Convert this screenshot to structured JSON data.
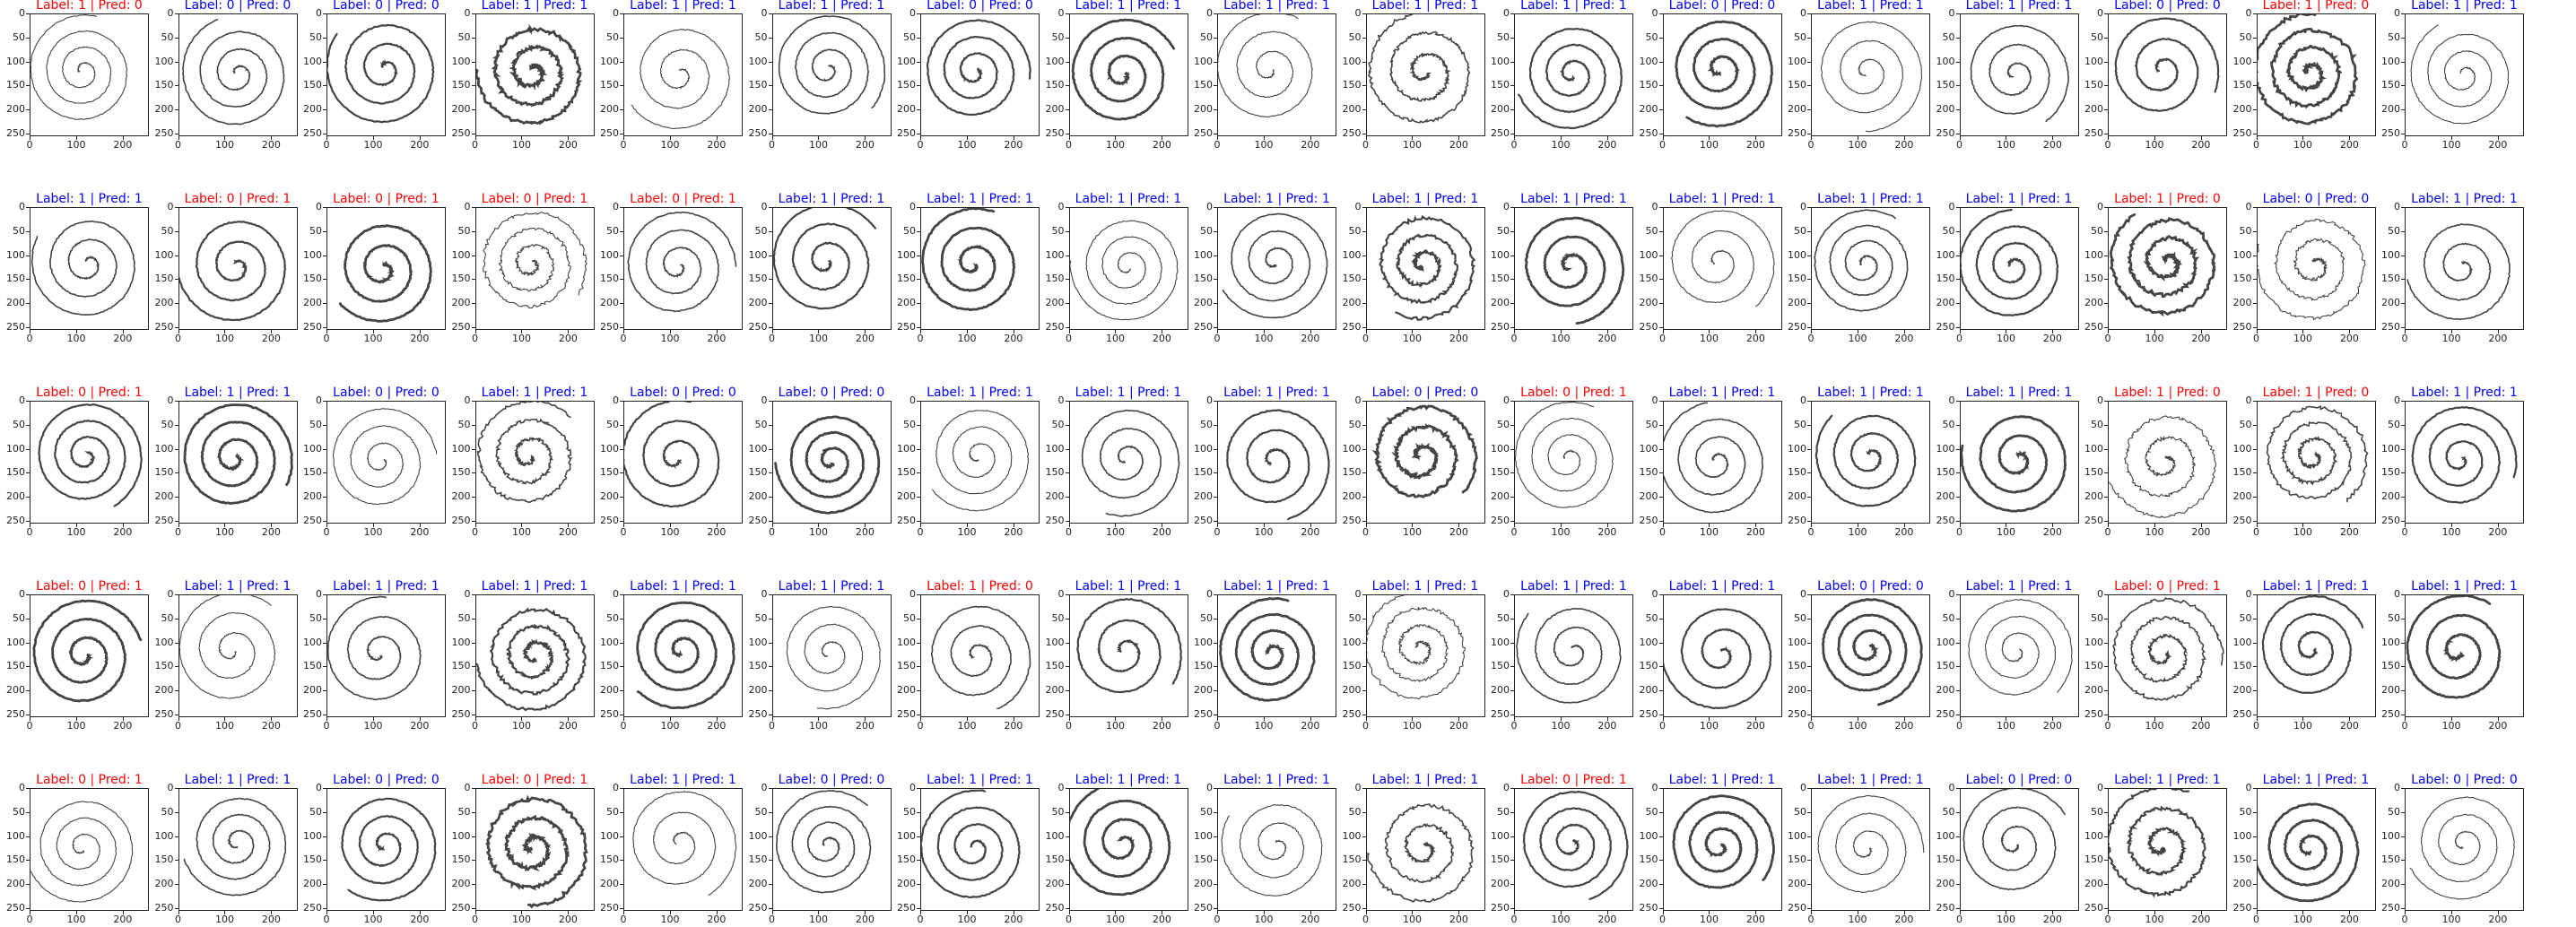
{
  "colors": {
    "match": "#0000ff",
    "mismatch": "#ff0000",
    "stroke": "#444444"
  },
  "axis": {
    "y_ticks": [
      "0",
      "50",
      "100",
      "150",
      "200",
      "250"
    ],
    "x_ticks": [
      "0",
      "100",
      "200"
    ]
  },
  "panels": [
    {
      "title": "Label: 1 | Pred: 0",
      "label": 1,
      "pred": 0
    },
    {
      "title": "Label: 0 | Pred: 0",
      "label": 0,
      "pred": 0
    },
    {
      "title": "Label: 0 | Pred: 0",
      "label": 0,
      "pred": 0
    },
    {
      "title": "Label: 1 | Pred: 1",
      "label": 1,
      "pred": 1
    },
    {
      "title": "Label: 1 | Pred: 1",
      "label": 1,
      "pred": 1
    },
    {
      "title": "Label: 1 | Pred: 1",
      "label": 1,
      "pred": 1
    },
    {
      "title": "Label: 0 | Pred: 0",
      "label": 0,
      "pred": 0
    },
    {
      "title": "Label: 1 | Pred: 1",
      "label": 1,
      "pred": 1
    },
    {
      "title": "Label: 1 | Pred: 1",
      "label": 1,
      "pred": 1
    },
    {
      "title": "Label: 1 | Pred: 1",
      "label": 1,
      "pred": 1
    },
    {
      "title": "Label: 1 | Pred: 1",
      "label": 1,
      "pred": 1
    },
    {
      "title": "Label: 0 | Pred: 0",
      "label": 0,
      "pred": 0
    },
    {
      "title": "Label: 1 | Pred: 1",
      "label": 1,
      "pred": 1
    },
    {
      "title": "Label: 1 | Pred: 1",
      "label": 1,
      "pred": 1
    },
    {
      "title": "Label: 0 | Pred: 0",
      "label": 0,
      "pred": 0
    },
    {
      "title": "Label: 1 | Pred: 0",
      "label": 1,
      "pred": 0
    },
    {
      "title": "Label: 1 | Pred: 1",
      "label": 1,
      "pred": 1
    },
    {
      "title": "Label: 1 | Pred: 1",
      "label": 1,
      "pred": 1
    },
    {
      "title": "Label: 0 | Pred: 1",
      "label": 0,
      "pred": 1
    },
    {
      "title": "Label: 0 | Pred: 1",
      "label": 0,
      "pred": 1
    },
    {
      "title": "Label: 0 | Pred: 1",
      "label": 0,
      "pred": 1
    },
    {
      "title": "Label: 0 | Pred: 1",
      "label": 0,
      "pred": 1
    },
    {
      "title": "Label: 1 | Pred: 1",
      "label": 1,
      "pred": 1
    },
    {
      "title": "Label: 1 | Pred: 1",
      "label": 1,
      "pred": 1
    },
    {
      "title": "Label: 1 | Pred: 1",
      "label": 1,
      "pred": 1
    },
    {
      "title": "Label: 1 | Pred: 1",
      "label": 1,
      "pred": 1
    },
    {
      "title": "Label: 1 | Pred: 1",
      "label": 1,
      "pred": 1
    },
    {
      "title": "Label: 1 | Pred: 1",
      "label": 1,
      "pred": 1
    },
    {
      "title": "Label: 1 | Pred: 1",
      "label": 1,
      "pred": 1
    },
    {
      "title": "Label: 1 | Pred: 1",
      "label": 1,
      "pred": 1
    },
    {
      "title": "Label: 1 | Pred: 1",
      "label": 1,
      "pred": 1
    },
    {
      "title": "Label: 1 | Pred: 0",
      "label": 1,
      "pred": 0
    },
    {
      "title": "Label: 0 | Pred: 0",
      "label": 0,
      "pred": 0
    },
    {
      "title": "Label: 1 | Pred: 1",
      "label": 1,
      "pred": 1
    },
    {
      "title": "Label: 0 | Pred: 1",
      "label": 0,
      "pred": 1
    },
    {
      "title": "Label: 1 | Pred: 1",
      "label": 1,
      "pred": 1
    },
    {
      "title": "Label: 0 | Pred: 0",
      "label": 0,
      "pred": 0
    },
    {
      "title": "Label: 1 | Pred: 1",
      "label": 1,
      "pred": 1
    },
    {
      "title": "Label: 0 | Pred: 0",
      "label": 0,
      "pred": 0
    },
    {
      "title": "Label: 0 | Pred: 0",
      "label": 0,
      "pred": 0
    },
    {
      "title": "Label: 1 | Pred: 1",
      "label": 1,
      "pred": 1
    },
    {
      "title": "Label: 1 | Pred: 1",
      "label": 1,
      "pred": 1
    },
    {
      "title": "Label: 1 | Pred: 1",
      "label": 1,
      "pred": 1
    },
    {
      "title": "Label: 0 | Pred: 0",
      "label": 0,
      "pred": 0
    },
    {
      "title": "Label: 0 | Pred: 1",
      "label": 0,
      "pred": 1
    },
    {
      "title": "Label: 1 | Pred: 1",
      "label": 1,
      "pred": 1
    },
    {
      "title": "Label: 1 | Pred: 1",
      "label": 1,
      "pred": 1
    },
    {
      "title": "Label: 1 | Pred: 1",
      "label": 1,
      "pred": 1
    },
    {
      "title": "Label: 1 | Pred: 0",
      "label": 1,
      "pred": 0
    },
    {
      "title": "Label: 1 | Pred: 0",
      "label": 1,
      "pred": 0
    },
    {
      "title": "Label: 1 | Pred: 1",
      "label": 1,
      "pred": 1
    },
    {
      "title": "Label: 0 | Pred: 1",
      "label": 0,
      "pred": 1
    },
    {
      "title": "Label: 1 | Pred: 1",
      "label": 1,
      "pred": 1
    },
    {
      "title": "Label: 1 | Pred: 1",
      "label": 1,
      "pred": 1
    },
    {
      "title": "Label: 1 | Pred: 1",
      "label": 1,
      "pred": 1
    },
    {
      "title": "Label: 1 | Pred: 1",
      "label": 1,
      "pred": 1
    },
    {
      "title": "Label: 1 | Pred: 1",
      "label": 1,
      "pred": 1
    },
    {
      "title": "Label: 1 | Pred: 0",
      "label": 1,
      "pred": 0
    },
    {
      "title": "Label: 1 | Pred: 1",
      "label": 1,
      "pred": 1
    },
    {
      "title": "Label: 1 | Pred: 1",
      "label": 1,
      "pred": 1
    },
    {
      "title": "Label: 1 | Pred: 1",
      "label": 1,
      "pred": 1
    },
    {
      "title": "Label: 1 | Pred: 1",
      "label": 1,
      "pred": 1
    },
    {
      "title": "Label: 1 | Pred: 1",
      "label": 1,
      "pred": 1
    },
    {
      "title": "Label: 0 | Pred: 0",
      "label": 0,
      "pred": 0
    },
    {
      "title": "Label: 1 | Pred: 1",
      "label": 1,
      "pred": 1
    },
    {
      "title": "Label: 0 | Pred: 1",
      "label": 0,
      "pred": 1
    },
    {
      "title": "Label: 1 | Pred: 1",
      "label": 1,
      "pred": 1
    },
    {
      "title": "Label: 1 | Pred: 1",
      "label": 1,
      "pred": 1
    },
    {
      "title": "Label: 0 | Pred: 1",
      "label": 0,
      "pred": 1
    },
    {
      "title": "Label: 1 | Pred: 1",
      "label": 1,
      "pred": 1
    },
    {
      "title": "Label: 0 | Pred: 0",
      "label": 0,
      "pred": 0
    },
    {
      "title": "Label: 0 | Pred: 1",
      "label": 0,
      "pred": 1
    },
    {
      "title": "Label: 1 | Pred: 1",
      "label": 1,
      "pred": 1
    },
    {
      "title": "Label: 0 | Pred: 0",
      "label": 0,
      "pred": 0
    },
    {
      "title": "Label: 1 | Pred: 1",
      "label": 1,
      "pred": 1
    },
    {
      "title": "Label: 1 | Pred: 1",
      "label": 1,
      "pred": 1
    },
    {
      "title": "Label: 1 | Pred: 1",
      "label": 1,
      "pred": 1
    },
    {
      "title": "Label: 1 | Pred: 1",
      "label": 1,
      "pred": 1
    },
    {
      "title": "Label: 0 | Pred: 1",
      "label": 0,
      "pred": 1
    },
    {
      "title": "Label: 1 | Pred: 1",
      "label": 1,
      "pred": 1
    },
    {
      "title": "Label: 1 | Pred: 1",
      "label": 1,
      "pred": 1
    },
    {
      "title": "Label: 0 | Pred: 0",
      "label": 0,
      "pred": 0
    },
    {
      "title": "Label: 1 | Pred: 1",
      "label": 1,
      "pred": 1
    },
    {
      "title": "Label: 1 | Pred: 1",
      "label": 1,
      "pred": 1
    },
    {
      "title": "Label: 0 | Pred: 0",
      "label": 0,
      "pred": 0
    }
  ]
}
